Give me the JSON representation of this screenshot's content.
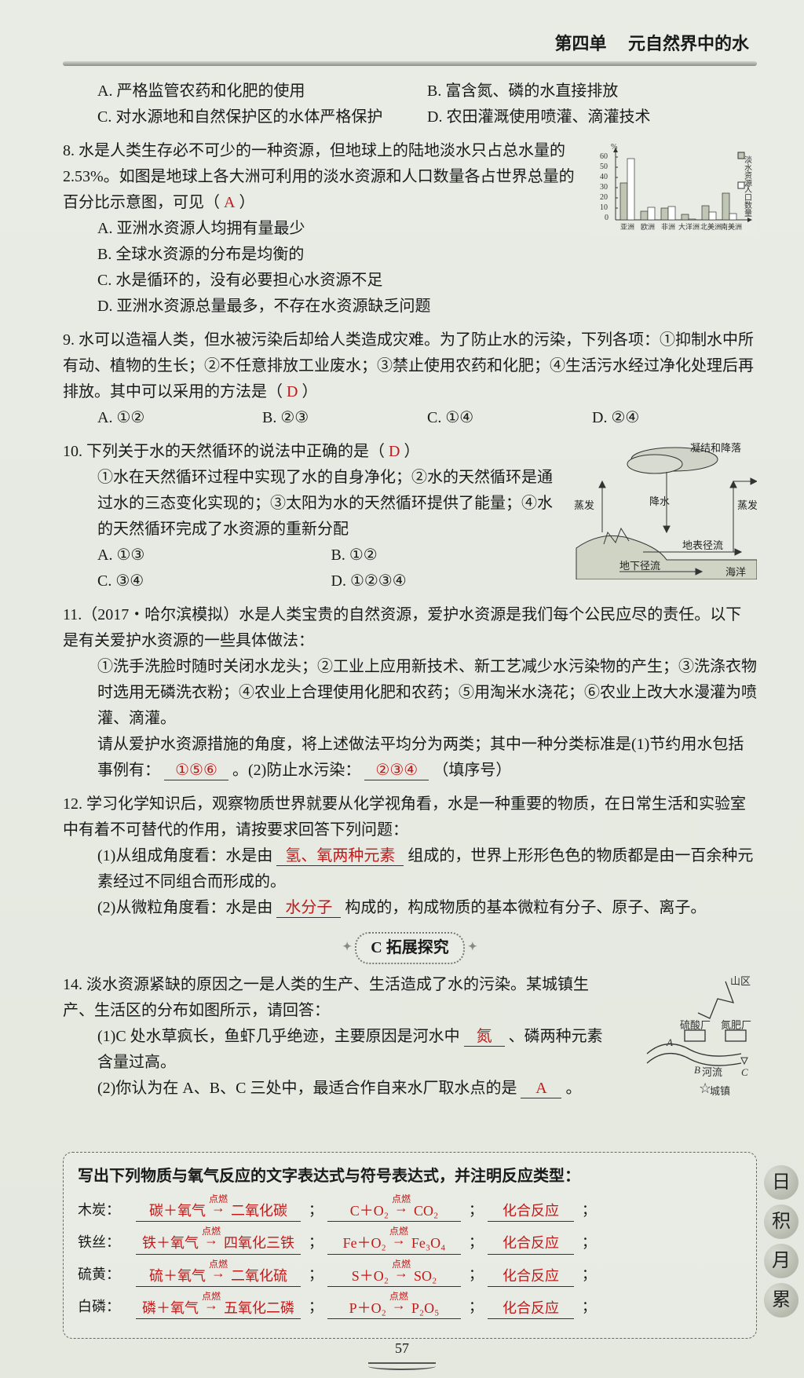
{
  "header": {
    "unit": "第四单",
    "title": "元自然界中的水"
  },
  "q7opts": {
    "A": "A. 严格监管农药和化肥的使用",
    "B": "B. 富含氮、磷的水直接排放",
    "C": "C. 对水源地和自然保护区的水体严格保护",
    "D": "D. 农田灌溉使用喷灌、滴灌技术"
  },
  "q8": {
    "stem": "8. 水是人类生存必不可少的一种资源，但地球上的陆地淡水只占总水量的 2.53%。如图是地球上各大洲可利用的淡水资源和人口数量各占世界总量的百分比示意图，可见（",
    "ans": "A",
    "stem_tail": "）",
    "A": "A. 亚洲水资源人均拥有量最少",
    "B": "B. 全球水资源的分布是均衡的",
    "C": "C. 水是循环的，没有必要担心水资源不足",
    "D": "D. 亚洲水资源总量最多，不存在水资源缺乏问题"
  },
  "chart": {
    "yticks": [
      "60",
      "50",
      "40",
      "30",
      "20",
      "10",
      "0"
    ],
    "ylabel_pct": "%",
    "legend": [
      "淡水资源",
      "人口数量"
    ],
    "categories": [
      "亚洲",
      "欧洲",
      "非洲",
      "大洋洲",
      "北美洲",
      "南美洲"
    ],
    "water": [
      36,
      8,
      11,
      5,
      14,
      26
    ],
    "pop": [
      60,
      12,
      13,
      1,
      8,
      6
    ],
    "water_color": "#bfc7b4",
    "pop_color": "#ffffff",
    "axis_color": "#333"
  },
  "q9": {
    "stem": "9. 水可以造福人类，但水被污染后却给人类造成灾难。为了防止水的污染，下列各项：①抑制水中所有动、植物的生长；②不任意排放工业废水；③禁止使用农药和化肥；④生活污水经过净化处理后再排放。其中可以采用的方法是（",
    "ans": "D",
    "stem_tail": "）",
    "A": "A. ①②",
    "B": "B. ②③",
    "C": "C. ①④",
    "D": "D. ②④"
  },
  "q10": {
    "stem": "10. 下列关于水的天然循环的说法中正确的是（",
    "ans": "D",
    "stem_tail": "）",
    "body": "①水在天然循环过程中实现了水的自身净化；②水的天然循环是通过水的三态变化实现的；③太阳为水的天然循环提供了能量；④水的天然循环完成了水资源的重新分配",
    "A": "A. ①③",
    "B": "B. ①②",
    "C": "C. ③④",
    "D": "D. ①②③④"
  },
  "cycle": {
    "labels": {
      "top": "凝结和降落",
      "l_evap": "蒸发",
      "rain": "降水",
      "r_evap": "蒸发",
      "surface": "地表径流",
      "ground": "地下径流",
      "ocean": "海洋"
    }
  },
  "q11": {
    "stem1": "11.（2017・哈尔滨模拟）水是人类宝贵的自然资源，爱护水资源是我们每个公民应尽的责任。以下是有关爱护水资源的一些具体做法：",
    "body": "①洗手洗脸时随时关闭水龙头；②工业上应用新技术、新工艺减少水污染物的产生；③洗涤衣物时选用无磷洗衣粉；④农业上合理使用化肥和农药；⑤用淘米水浇花；⑥农业上改大水漫灌为喷灌、滴灌。",
    "ask": "请从爱护水资源措施的角度，将上述做法平均分为两类；其中一种分类标准是(1)节约用水包括事例有：",
    "blank1": "①⑤⑥",
    "mid": "。(2)防止水污染：",
    "blank2": "②③④",
    "tail": "（填序号）"
  },
  "q12": {
    "stem": "12. 学习化学知识后，观察物质世界就要从化学视角看，水是一种重要的物质，在日常生活和实验室中有着不可替代的作用，请按要求回答下列问题：",
    "p1a": "(1)从组成角度看：水是由",
    "p1blank": "氢、氧两种元素",
    "p1b": "组成的，世界上形形色色的物质都是由一百余种元素经过不同组合而形成的。",
    "p2a": "(2)从微粒角度看：水是由",
    "p2blank": "水分子",
    "p2b": "构成的，构成物质的基本微粒有分子、原子、离子。"
  },
  "sectionC": "C 拓展探究",
  "q14": {
    "stem": "14. 淡水资源紧缺的原因之一是人类的生产、生活造成了水的污染。某城镇生产、生活区的分布如图所示，请回答：",
    "p1a": "(1)C 处水草疯长，鱼虾几乎绝迹，主要原因是河水中",
    "p1blank": "氮",
    "p1b": "、磷两种元素含量过高。",
    "p2a": "(2)你认为在 A、B、C 三处中，最适合作自来水厂取水点的是",
    "p2blank": "A",
    "p2b": "。"
  },
  "map": {
    "labels": {
      "mount": "山区",
      "h2so4": "硫酸厂",
      "fert": "氮肥厂",
      "river": "河流",
      "town": "城镇",
      "A": "A",
      "B": "B",
      "C": "C"
    }
  },
  "accum": {
    "title": "写出下列物质与氧气反应的文字表达式与符号表达式，并注明反应类型：",
    "cond": "点燃",
    "rows": [
      {
        "label": "木炭：",
        "wordL": "碳＋氧气",
        "wordR": "二氧化碳",
        "symL": "C＋O₂",
        "symR": "CO₂",
        "type": "化合反应"
      },
      {
        "label": "铁丝：",
        "wordL": "铁＋氧气",
        "wordR": "四氧化三铁",
        "symL": "Fe＋O₂",
        "symR": "Fe₃O₄",
        "type": "化合反应"
      },
      {
        "label": "硫黄：",
        "wordL": "硫＋氧气",
        "wordR": "二氧化硫",
        "symL": "S＋O₂",
        "symR": "SO₂",
        "type": "化合反应"
      },
      {
        "label": "白磷：",
        "wordL": "磷＋氧气",
        "wordR": "五氧化二磷",
        "symL": "P＋O₂",
        "symR": "P₂O₅",
        "type": "化合反应"
      }
    ],
    "circles": [
      "日",
      "积",
      "月",
      "累"
    ]
  },
  "pagenum": "57"
}
